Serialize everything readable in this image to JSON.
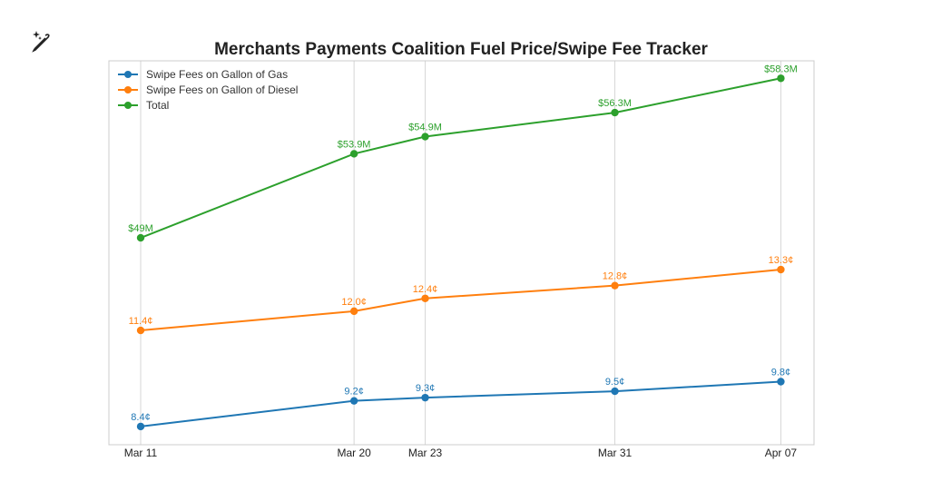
{
  "toolbar": {
    "icon": "magic-wand-sparkle-icon"
  },
  "chart_data": {
    "type": "line",
    "title": "Merchants Payments Coalition Fuel Price/Swipe Fee Tracker",
    "xlabel": "",
    "ylabel": "",
    "x": [
      "2022-03-11",
      "2022-03-20",
      "2022-03-23",
      "2022-03-31",
      "2022-04-07"
    ],
    "xticks": [
      "Mar 11",
      "Mar 20",
      "Mar 23",
      "Mar 31",
      "Apr 07"
    ],
    "grid": "vertical",
    "y_axis_visible": false,
    "legend_placement": "top-left",
    "ylim_cents": [
      7.83,
      19.82
    ],
    "ylim_millions": [
      36.94,
      59.32
    ],
    "series": [
      {
        "name": "Swipe Fees on Gallon of Gas",
        "color": "#1f77b4",
        "axis": "cents",
        "values": [
          8.4,
          9.2,
          9.3,
          9.5,
          9.8
        ],
        "labels": [
          "8.4¢",
          "9.2¢",
          "9.3¢",
          "9.5¢",
          "9.8¢"
        ]
      },
      {
        "name": "Swipe Fees on Gallon of Diesel",
        "color": "#ff7f0e",
        "axis": "cents",
        "values": [
          11.4,
          12.0,
          12.4,
          12.8,
          13.3
        ],
        "labels": [
          "11.4¢",
          "12.0¢",
          "12.4¢",
          "12.8¢",
          "13.3¢"
        ]
      },
      {
        "name": "Total",
        "color": "#2ca02c",
        "axis": "millions",
        "values": [
          49,
          53.9,
          54.9,
          56.3,
          58.3
        ],
        "labels": [
          "$49M",
          "$53.9M",
          "$54.9M",
          "$56.3M",
          "$58.3M"
        ]
      }
    ]
  }
}
